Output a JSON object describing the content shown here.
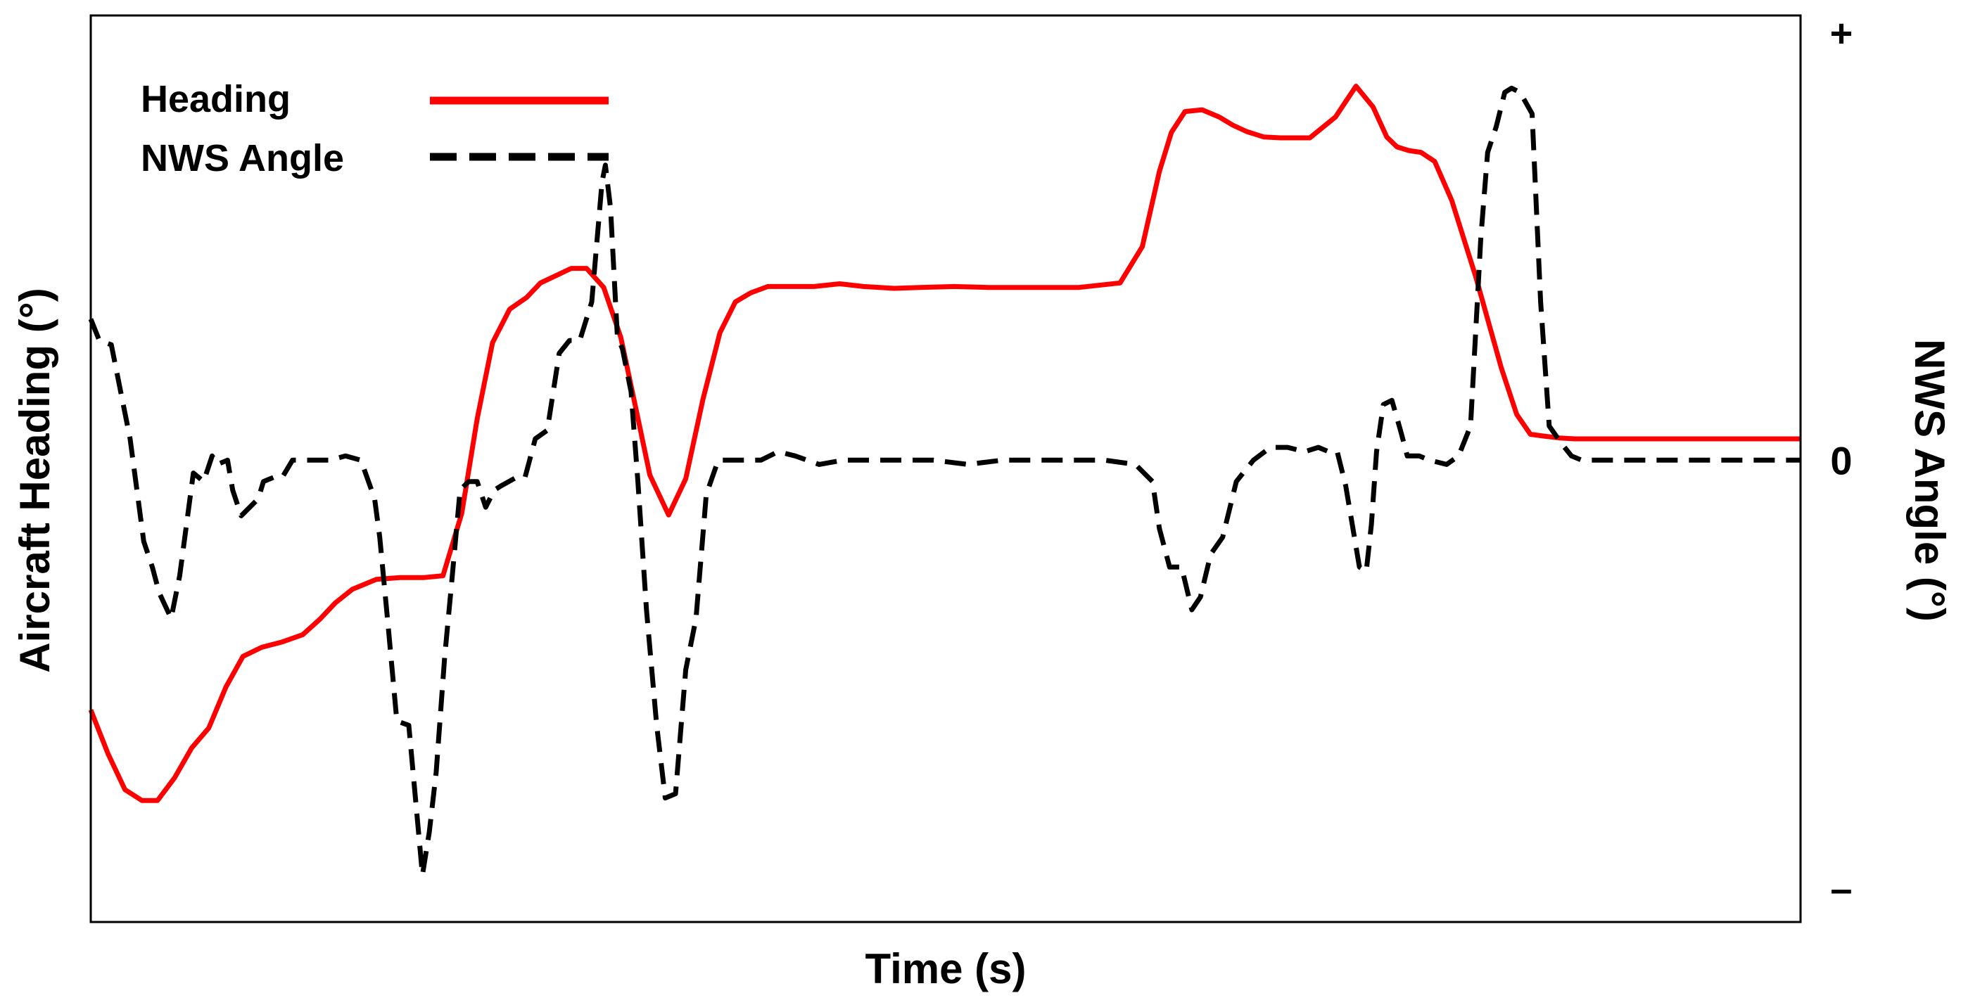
{
  "chart_data": {
    "type": "line",
    "xlabel": "Time (s)",
    "ylabel_left": "Aircraft Heading (°)",
    "ylabel_right": "NWS Angle (°)",
    "right_ticks": [
      "+",
      "0",
      "–"
    ],
    "right_tick_values": [
      1,
      0,
      -1
    ],
    "xlim": [
      0,
      100
    ],
    "ylim_left": [
      0,
      100
    ],
    "ylim_right": [
      -1.08,
      1.04
    ],
    "grid": false,
    "legend_position": "top-left",
    "series": [
      {
        "name": "Heading",
        "color": "#ff0000",
        "style": "solid",
        "axis": "left",
        "x": [
          0,
          1.0,
          2.0,
          3.0,
          3.9,
          4.9,
          5.9,
          6.9,
          7.9,
          8.9,
          10.0,
          11.2,
          12.4,
          13.4,
          14.3,
          15.3,
          16.7,
          18.1,
          19.5,
          20.6,
          21.7,
          22.6,
          23.5,
          24.5,
          25.5,
          26.3,
          27.1,
          28.1,
          29.0,
          30.0,
          31.0,
          32.0,
          32.7,
          33.8,
          34.8,
          35.8,
          36.8,
          37.7,
          38.6,
          39.6,
          40.3,
          41.3,
          42.3,
          43.8,
          45.2,
          47.0,
          48.5,
          50.5,
          52.5,
          55.1,
          57.8,
          60.2,
          61.5,
          62.5,
          63.2,
          64.0,
          65.0,
          66.0,
          66.8,
          67.6,
          68.6,
          69.6,
          71.3,
          72.8,
          74.0,
          75.0,
          75.8,
          76.4,
          77.1,
          77.8,
          78.6,
          79.6,
          81.0,
          82.5,
          83.4,
          84.2,
          85.0,
          85.9,
          86.8,
          87.6,
          88.6,
          89.7,
          91.0,
          92.5,
          94.2,
          95.8,
          97.4,
          99.0,
          100
        ],
        "y": [
          23.4,
          18.6,
          14.6,
          13.4,
          13.4,
          15.9,
          19.2,
          21.4,
          25.9,
          29.3,
          30.3,
          30.9,
          31.7,
          33.4,
          35.2,
          36.7,
          37.8,
          38.0,
          38.0,
          38.2,
          45.1,
          55.5,
          63.9,
          67.6,
          68.9,
          70.5,
          71.2,
          72.1,
          72.1,
          70.0,
          64.5,
          55.6,
          49.3,
          44.9,
          48.9,
          57.6,
          65.0,
          68.4,
          69.4,
          70.1,
          70.1,
          70.1,
          70.1,
          70.4,
          70.1,
          69.9,
          70.0,
          70.1,
          70.0,
          70.0,
          70.0,
          70.5,
          74.5,
          82.8,
          87.1,
          89.4,
          89.6,
          88.8,
          87.9,
          87.2,
          86.6,
          86.5,
          86.5,
          88.8,
          92.2,
          89.9,
          86.6,
          85.5,
          85.1,
          84.9,
          83.9,
          79.6,
          71.2,
          61.1,
          56.0,
          53.8,
          53.6,
          53.4,
          53.3,
          53.3,
          53.3,
          53.3,
          53.3,
          53.3,
          53.3,
          53.3,
          53.3,
          53.3,
          53.3
        ]
      },
      {
        "name": "NWS Angle",
        "color": "#000000",
        "style": "dashed",
        "axis": "right",
        "x": [
          0,
          0.5,
          1.2,
          2.3,
          3.1,
          3.6,
          4.0,
          4.7,
          5.2,
          6.0,
          6.6,
          7.1,
          7.4,
          8.0,
          8.3,
          8.8,
          9.8,
          10.1,
          10.7,
          11.2,
          11.8,
          12.6,
          13.4,
          14.0,
          14.9,
          15.8,
          16.6,
          16.9,
          17.4,
          17.9,
          18.6,
          19.4,
          19.8,
          20.2,
          20.7,
          21.1,
          21.6,
          22.1,
          22.6,
          23.1,
          23.6,
          24.0,
          24.9,
          25.4,
          26.0,
          26.7,
          27.4,
          28.0,
          28.6,
          29.3,
          29.9,
          30.1,
          30.4,
          30.8,
          31.1,
          31.6,
          32.0,
          32.5,
          33.1,
          33.6,
          34.2,
          34.8,
          35.4,
          36.0,
          36.7,
          37.5,
          38.2,
          39.2,
          40.2,
          41.2,
          42.6,
          44.0,
          45.4,
          47.4,
          49.3,
          51.3,
          53.3,
          55.3,
          57.3,
          59.3,
          61.1,
          62.1,
          62.5,
          63.1,
          63.8,
          64.4,
          64.9,
          65.5,
          66.2,
          67.0,
          68.0,
          69.0,
          70.0,
          71.0,
          71.8,
          72.4,
          72.9,
          73.4,
          74.2,
          74.6,
          74.9,
          75.2,
          75.6,
          76.1,
          76.6,
          77.0,
          77.7,
          78.3,
          79.3,
          80.0,
          80.7,
          81.3,
          81.7,
          82.2,
          82.7,
          83.1,
          83.6,
          84.3,
          84.8,
          85.3,
          86.0,
          86.6,
          87.2,
          87.9,
          88.6,
          89.7,
          91.0,
          92.3,
          93.6,
          94.9,
          96.2,
          97.6,
          99.0,
          100
        ],
        "y": [
          0.33,
          0.28,
          0.27,
          0.05,
          -0.19,
          -0.25,
          -0.31,
          -0.37,
          -0.27,
          -0.03,
          -0.05,
          0.01,
          -0.01,
          0.0,
          -0.07,
          -0.13,
          -0.09,
          -0.05,
          -0.04,
          -0.04,
          0.0,
          0.0,
          0.0,
          0.0,
          0.01,
          0.0,
          -0.09,
          -0.18,
          -0.39,
          -0.61,
          -0.62,
          -0.97,
          -0.87,
          -0.73,
          -0.46,
          -0.29,
          -0.07,
          -0.05,
          -0.05,
          -0.11,
          -0.07,
          -0.06,
          -0.04,
          -0.04,
          0.05,
          0.07,
          0.25,
          0.28,
          0.28,
          0.37,
          0.65,
          0.69,
          0.59,
          0.29,
          0.26,
          0.16,
          -0.05,
          -0.35,
          -0.62,
          -0.79,
          -0.78,
          -0.49,
          -0.37,
          -0.08,
          0.0,
          0.0,
          0.0,
          0.0,
          0.02,
          0.01,
          -0.01,
          0.0,
          0.0,
          0.0,
          0.0,
          -0.01,
          0.0,
          0.0,
          0.0,
          0.0,
          -0.01,
          -0.05,
          -0.16,
          -0.25,
          -0.25,
          -0.35,
          -0.32,
          -0.22,
          -0.18,
          -0.05,
          0.0,
          0.03,
          0.03,
          0.02,
          0.03,
          0.02,
          0.02,
          -0.06,
          -0.25,
          -0.26,
          -0.15,
          0.02,
          0.13,
          0.14,
          0.07,
          0.01,
          0.01,
          0.0,
          -0.01,
          0.01,
          0.08,
          0.52,
          0.72,
          0.78,
          0.86,
          0.87,
          0.86,
          0.81,
          0.37,
          0.08,
          0.04,
          0.01,
          0.0,
          0.0,
          0.0,
          0.0,
          0.0,
          0.0,
          0.0,
          0.0,
          0.0,
          0.0,
          0.0,
          0.0
        ]
      }
    ]
  }
}
